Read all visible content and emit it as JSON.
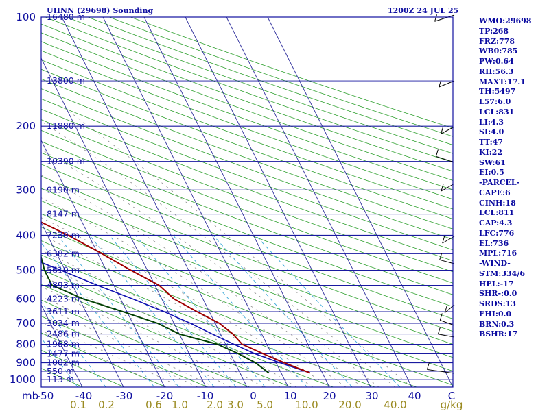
{
  "header": {
    "station": "UIINN (29698) Sounding",
    "time": "1200Z 24 JUL 25"
  },
  "indices": [
    "WMO:29698",
    "TP:268",
    "FRZ:778",
    "WB0:785",
    "PW:0.64",
    "RH:56.3",
    "MAXT:17.1",
    "TH:5497",
    "L57:6.0",
    "LCL:831",
    "LI:4.3",
    "SI:4.0",
    "TT:47",
    "KI:22",
    "SW:61",
    "EI:0.5",
    "-PARCEL-",
    "CAPE:6",
    "CINH:18",
    "LCL:811",
    "CAP:4.3",
    "LFC:776",
    "EL:736",
    "MPL:716",
    "-WIND-",
    "STM:334/6",
    "HEL:-17",
    "SHR-:0.0",
    "SRDS:13",
    "EHI:0.0",
    "BRN:0.3",
    "BSHR:17"
  ],
  "chart_data": {
    "type": "skew-t",
    "pressure_unit_label": "mb",
    "temp_unit_label": "C",
    "mixing_unit_label": "g/kg",
    "pressure_ticks": [
      100,
      200,
      300,
      400,
      500,
      600,
      700,
      800,
      900,
      1000
    ],
    "temp_ticks": [
      "-50",
      "-40",
      "-30",
      "-20",
      "-10",
      "0",
      "10",
      "20",
      "30",
      "40"
    ],
    "mixing_ticks": [
      "0.1",
      "0.2",
      "0.6",
      "1.0",
      "2.0",
      "3.0",
      "5.0",
      "10.0",
      "20.0",
      "40.0"
    ],
    "mixing_values": [
      0.1,
      0.2,
      0.6,
      1.0,
      2.0,
      3.0,
      5.0,
      10.0,
      20.0,
      40.0
    ],
    "height_labels": [
      {
        "p": 100,
        "text": "16480 m"
      },
      {
        "p": 150,
        "text": "13800 m"
      },
      {
        "p": 200,
        "text": "11880 m"
      },
      {
        "p": 250,
        "text": "10390 m"
      },
      {
        "p": 300,
        "text": "9190 m"
      },
      {
        "p": 350,
        "text": "8147 m"
      },
      {
        "p": 400,
        "text": "7230 m"
      },
      {
        "p": 450,
        "text": "6382 m"
      },
      {
        "p": 500,
        "text": "5610 m"
      },
      {
        "p": 550,
        "text": "4893 m"
      },
      {
        "p": 600,
        "text": "4223 m"
      },
      {
        "p": 650,
        "text": "3611 m"
      },
      {
        "p": 700,
        "text": "3034 m"
      },
      {
        "p": 750,
        "text": "2486 m"
      },
      {
        "p": 800,
        "text": "1968 m"
      },
      {
        "p": 850,
        "text": "1477 m"
      },
      {
        "p": 900,
        "text": "1002 m"
      },
      {
        "p": 950,
        "text": "550 m"
      },
      {
        "p": 1000,
        "text": "113 m"
      }
    ],
    "temperature_profile": [
      {
        "p": 960,
        "t": 17
      },
      {
        "p": 900,
        "t": 12
      },
      {
        "p": 850,
        "t": 8
      },
      {
        "p": 800,
        "t": 4
      },
      {
        "p": 750,
        "t": 3
      },
      {
        "p": 700,
        "t": 1
      },
      {
        "p": 650,
        "t": -3
      },
      {
        "p": 600,
        "t": -7
      },
      {
        "p": 550,
        "t": -9
      },
      {
        "p": 500,
        "t": -14
      },
      {
        "p": 450,
        "t": -19
      },
      {
        "p": 400,
        "t": -25
      },
      {
        "p": 350,
        "t": -33
      },
      {
        "p": 300,
        "t": -41
      },
      {
        "p": 250,
        "t": -49
      },
      {
        "p": 215,
        "t": -50
      },
      {
        "p": 200,
        "t": -49
      },
      {
        "p": 150,
        "t": -57
      },
      {
        "p": 100,
        "t": -64
      }
    ],
    "dewpoint_profile": [
      {
        "p": 960,
        "t": 7
      },
      {
        "p": 900,
        "t": 5
      },
      {
        "p": 850,
        "t": 2
      },
      {
        "p": 800,
        "t": -2
      },
      {
        "p": 750,
        "t": -10
      },
      {
        "p": 700,
        "t": -14
      },
      {
        "p": 650,
        "t": -21
      },
      {
        "p": 600,
        "t": -29
      },
      {
        "p": 550,
        "t": -35
      },
      {
        "p": 500,
        "t": -35
      },
      {
        "p": 450,
        "t": -34
      },
      {
        "p": 400,
        "t": -40
      },
      {
        "p": 350,
        "t": -44
      },
      {
        "p": 300,
        "t": -50
      },
      {
        "p": 250,
        "t": -55
      },
      {
        "p": 215,
        "t": -52
      },
      {
        "p": 200,
        "t": -55
      },
      {
        "p": 150,
        "t": -65
      },
      {
        "p": 100,
        "t": -78
      }
    ],
    "parcel_profile": [
      {
        "p": 960,
        "t": 17
      },
      {
        "p": 900,
        "t": 11
      },
      {
        "p": 850,
        "t": 6
      },
      {
        "p": 800,
        "t": 2
      },
      {
        "p": 750,
        "t": -2
      },
      {
        "p": 700,
        "t": -6
      },
      {
        "p": 650,
        "t": -11
      },
      {
        "p": 600,
        "t": -17
      },
      {
        "p": 550,
        "t": -24
      },
      {
        "p": 500,
        "t": -31
      },
      {
        "p": 450,
        "t": -39
      },
      {
        "p": 400,
        "t": -47
      },
      {
        "p": 350,
        "t": -56
      },
      {
        "p": 300,
        "t": -66
      },
      {
        "p": 250,
        "t": -77
      },
      {
        "p": 200,
        "t": -90
      },
      {
        "p": 150,
        "t": -106
      },
      {
        "p": 120,
        "t": -118
      }
    ],
    "colors": {
      "frame": "#1010a0",
      "isobar": "#1a1aa0",
      "isotherm": "#2a2a9a",
      "dry_adiabat": "#2ea02e",
      "moist_adiabat": "#8a8a8a",
      "mixing_ratio": "#3aa8d8",
      "temperature": "#a00000",
      "dewpoint": "#004000",
      "parcel": "#1010b0",
      "wind": "#000000"
    }
  }
}
